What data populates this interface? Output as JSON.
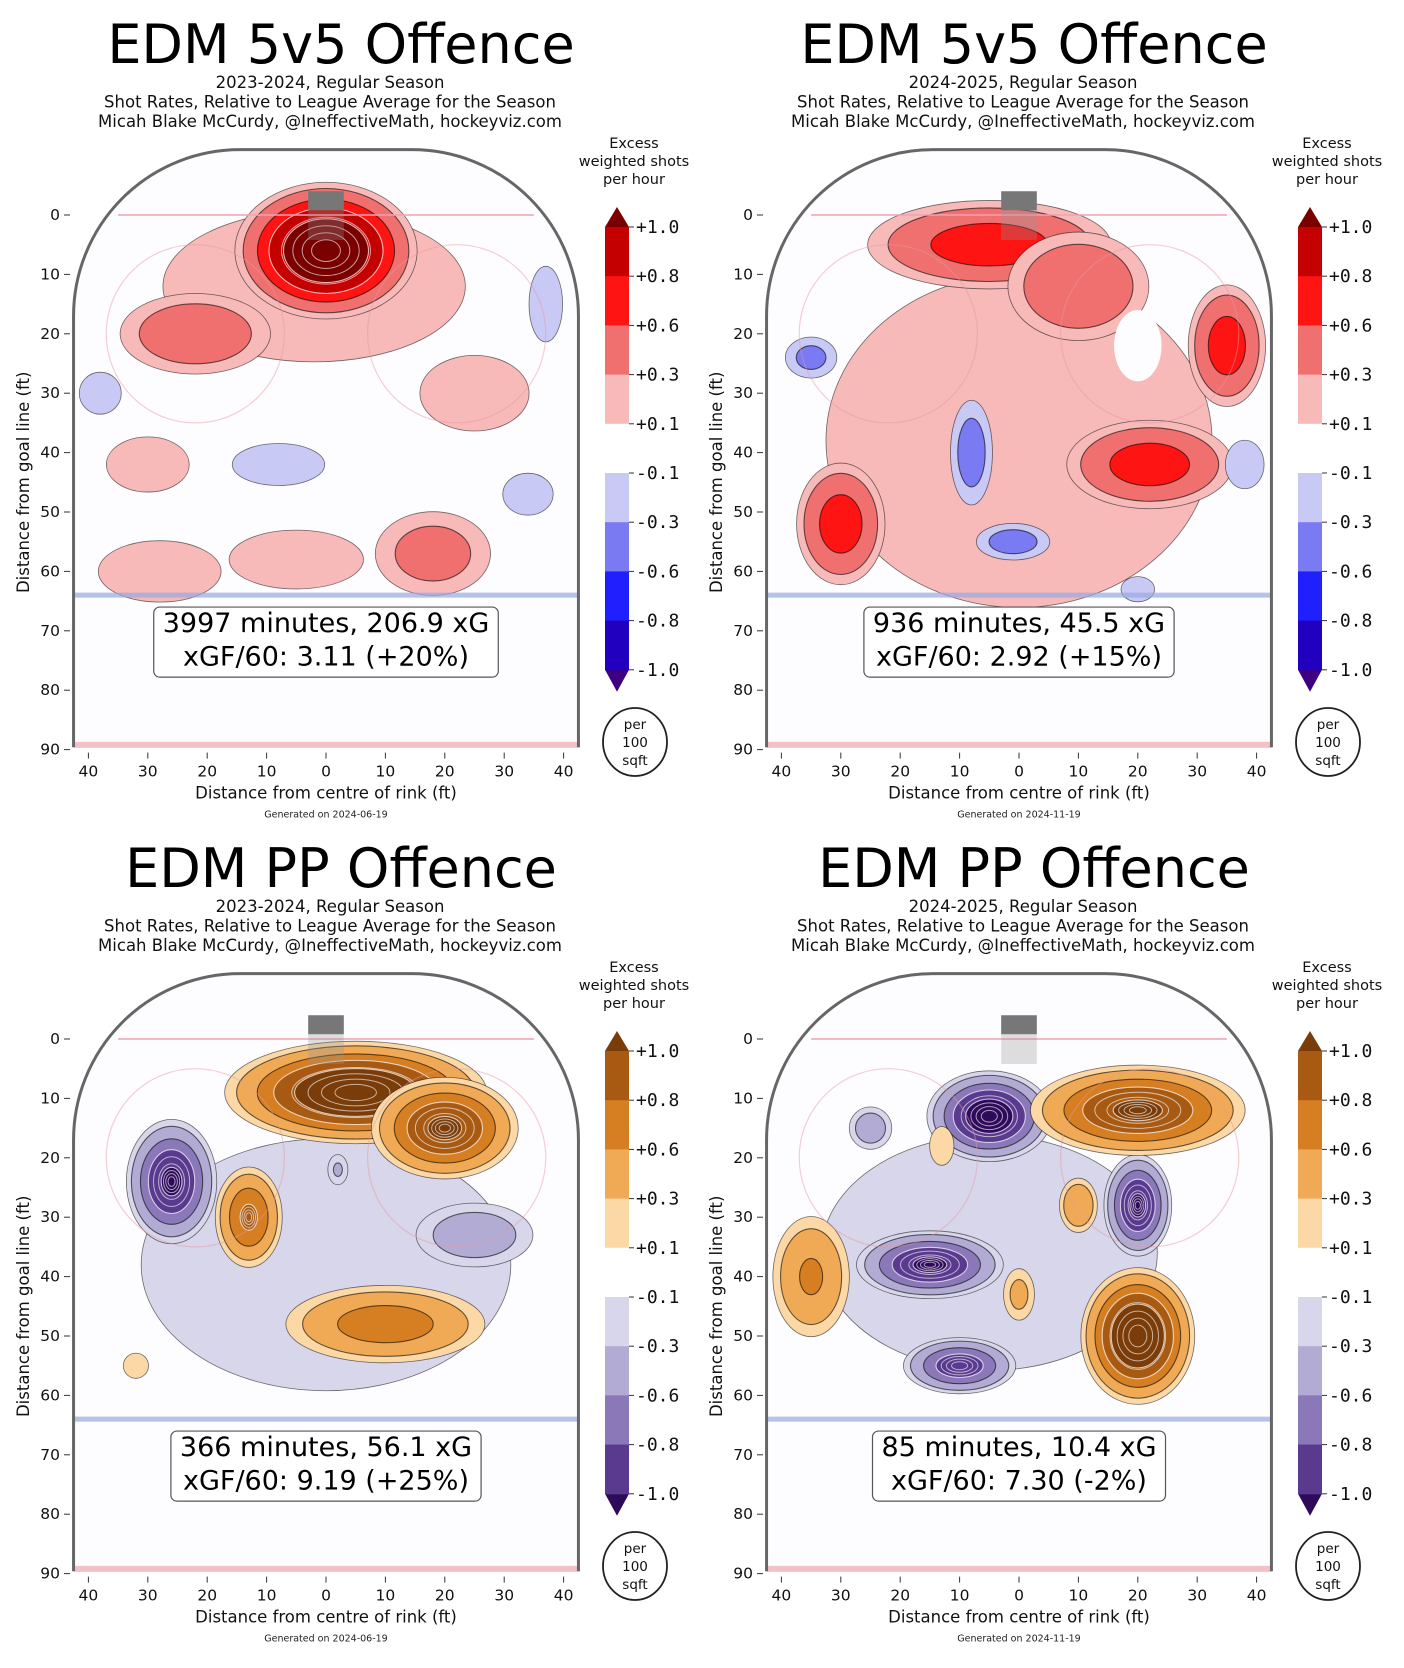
{
  "colorbar_title": [
    "Excess",
    "weighted shots",
    "per hour"
  ],
  "colorbar_unit": [
    "per",
    "100",
    "sqft"
  ],
  "colorbar_ticks": [
    "+1.0",
    "+0.8",
    "+0.6",
    "+0.3",
    "+0.1",
    "-0.1",
    "-0.3",
    "-0.6",
    "-0.8",
    "-1.0"
  ],
  "colorbar_levels": [
    1.0,
    0.8,
    0.6,
    0.3,
    0.1,
    -0.1,
    -0.3,
    -0.6,
    -0.8,
    -1.0
  ],
  "palettes": {
    "red_blue": {
      "pos": [
        "#f8b9b9",
        "#f07070",
        "#ff1414",
        "#c40000",
        "#7a0000"
      ],
      "neg": [
        "#c9c9f5",
        "#7a7af2",
        "#2020ff",
        "#2200c0",
        "#3c0080"
      ]
    },
    "brown_purple": {
      "pos": [
        "#fbd8a6",
        "#f0aa55",
        "#d57e22",
        "#a85a12",
        "#7a3c08"
      ],
      "neg": [
        "#d8d6ea",
        "#b2acd4",
        "#8a78b8",
        "#5a3a8e",
        "#2f0a5a"
      ]
    }
  },
  "chart_data": [
    {
      "type": "heatmap",
      "title": "EDM 5v5 Offence",
      "subtitle": [
        "2023-2024, Regular Season",
        "Shot Rates, Relative to League Average for the Season",
        "Micah Blake McCurdy, @IneffectiveMath, hockeyviz.com"
      ],
      "xlabel": "Distance from centre of rink (ft)",
      "ylabel": "Distance from goal line (ft)",
      "xticks": [
        "40",
        "30",
        "20",
        "10",
        "0",
        "10",
        "20",
        "30",
        "40"
      ],
      "yticks": [
        "0",
        "10",
        "20",
        "30",
        "40",
        "50",
        "60",
        "70",
        "80",
        "90"
      ],
      "xlim": [
        -42,
        42
      ],
      "ylim": [
        0,
        90
      ],
      "palette": "red_blue",
      "stat_lines": [
        "3997 minutes, 206.9 xG",
        "xGF/60: 3.11 (+20%)"
      ],
      "generated": "Generated on 2024-06-19",
      "hotspots": [
        {
          "x": -2,
          "y": 12,
          "rx": 36,
          "ry": 18,
          "v": 0.2
        },
        {
          "x": 25,
          "y": 30,
          "rx": 13,
          "ry": 9,
          "v": 0.2
        },
        {
          "x": -28,
          "y": 60,
          "rx": 14,
          "ry": 7,
          "v": 0.22
        },
        {
          "x": -5,
          "y": 58,
          "rx": 16,
          "ry": 7,
          "v": 0.2
        },
        {
          "x": 18,
          "y": 57,
          "rx": 11,
          "ry": 8,
          "v": 0.45
        },
        {
          "x": -30,
          "y": 42,
          "rx": 9,
          "ry": 6,
          "v": 0.25
        },
        {
          "x": 0,
          "y": 6,
          "rx": 16,
          "ry": 12,
          "v": 1.25
        },
        {
          "x": -22,
          "y": 20,
          "rx": 14,
          "ry": 7.5,
          "v": 0.55
        },
        {
          "x": 37,
          "y": 15,
          "rx": 4,
          "ry": 9,
          "v": -0.2
        },
        {
          "x": -38,
          "y": 30,
          "rx": 5,
          "ry": 5,
          "v": -0.2
        },
        {
          "x": -8,
          "y": 42,
          "rx": 11,
          "ry": 5,
          "v": -0.2
        },
        {
          "x": 34,
          "y": 47,
          "rx": 6,
          "ry": 5,
          "v": -0.2
        }
      ]
    },
    {
      "type": "heatmap",
      "title": "EDM 5v5 Offence",
      "subtitle": [
        "2024-2025, Regular Season",
        "Shot Rates, Relative to League Average for the Season",
        "Micah Blake McCurdy, @IneffectiveMath, hockeyviz.com"
      ],
      "xlabel": "Distance from centre of rink (ft)",
      "ylabel": "Distance from goal line (ft)",
      "xticks": [
        "40",
        "30",
        "20",
        "10",
        "0",
        "10",
        "20",
        "30",
        "40"
      ],
      "yticks": [
        "0",
        "10",
        "20",
        "30",
        "40",
        "50",
        "60",
        "70",
        "80",
        "90"
      ],
      "xlim": [
        -42,
        42
      ],
      "ylim": [
        0,
        90
      ],
      "palette": "red_blue",
      "stat_lines": [
        "936 minutes, 45.5 xG",
        "xGF/60: 2.92 (+15%)"
      ],
      "generated": "Generated on 2024-11-19",
      "hotspots": [
        {
          "x": 0,
          "y": 38,
          "rx": 44,
          "ry": 38,
          "v": 0.22
        },
        {
          "x": -5,
          "y": 5,
          "rx": 22,
          "ry": 8,
          "v": 0.75
        },
        {
          "x": 10,
          "y": 12,
          "rx": 13,
          "ry": 10,
          "v": 0.6
        },
        {
          "x": 35,
          "y": 22,
          "rx": 7,
          "ry": 11,
          "v": 0.75
        },
        {
          "x": 22,
          "y": 42,
          "rx": 15,
          "ry": 8,
          "v": 0.75
        },
        {
          "x": -30,
          "y": 52,
          "rx": 8,
          "ry": 11,
          "v": 0.75
        },
        {
          "x": 20,
          "y": 22,
          "rx": 4,
          "ry": 6,
          "v": -0.05
        },
        {
          "x": -8,
          "y": 40,
          "rx": 4,
          "ry": 10,
          "v": -0.45
        },
        {
          "x": -35,
          "y": 24,
          "rx": 5,
          "ry": 4,
          "v": -0.4
        },
        {
          "x": -1,
          "y": 55,
          "rx": 7,
          "ry": 3.5,
          "v": -0.45
        },
        {
          "x": 38,
          "y": 42,
          "rx": 4,
          "ry": 5,
          "v": -0.3
        },
        {
          "x": 20,
          "y": 63,
          "rx": 4,
          "ry": 3,
          "v": -0.2
        }
      ]
    },
    {
      "type": "heatmap",
      "title": "EDM PP Offence",
      "subtitle": [
        "2023-2024, Regular Season",
        "Shot Rates, Relative to League Average for the Season",
        "Micah Blake McCurdy, @IneffectiveMath, hockeyviz.com"
      ],
      "xlabel": "Distance from centre of rink (ft)",
      "ylabel": "Distance from goal line (ft)",
      "xticks": [
        "40",
        "30",
        "20",
        "10",
        "0",
        "10",
        "20",
        "30",
        "40"
      ],
      "yticks": [
        "0",
        "10",
        "20",
        "30",
        "40",
        "50",
        "60",
        "70",
        "80",
        "90"
      ],
      "xlim": [
        -42,
        42
      ],
      "ylim": [
        0,
        90
      ],
      "palette": "brown_purple",
      "stat_lines": [
        "366 minutes, 56.1 xG",
        "xGF/60: 9.19 (+25%)"
      ],
      "generated": "Generated on 2024-06-19",
      "hotspots": [
        {
          "x": 0,
          "y": 38,
          "rx": 44,
          "ry": 30,
          "v": -0.2
        },
        {
          "x": 5,
          "y": 9,
          "rx": 23,
          "ry": 9,
          "v": 1.25
        },
        {
          "x": 20,
          "y": 15,
          "rx": 13,
          "ry": 9,
          "v": 1.05
        },
        {
          "x": -13,
          "y": 30,
          "rx": 6,
          "ry": 9,
          "v": 0.85
        },
        {
          "x": 10,
          "y": 48,
          "rx": 18,
          "ry": 7,
          "v": 0.75
        },
        {
          "x": -32,
          "y": 55,
          "rx": 3,
          "ry": 3,
          "v": 0.2
        },
        {
          "x": -26,
          "y": 24,
          "rx": 8,
          "ry": 11,
          "v": -1.05
        },
        {
          "x": 25,
          "y": 33,
          "rx": 11,
          "ry": 6,
          "v": -0.5
        },
        {
          "x": 2,
          "y": 22,
          "rx": 2,
          "ry": 3,
          "v": -0.35
        }
      ]
    },
    {
      "type": "heatmap",
      "title": "EDM PP Offence",
      "subtitle": [
        "2024-2025, Regular Season",
        "Shot Rates, Relative to League Average for the Season",
        "Micah Blake McCurdy, @IneffectiveMath, hockeyviz.com"
      ],
      "xlabel": "Distance from centre of rink (ft)",
      "ylabel": "Distance from goal line (ft)",
      "xticks": [
        "40",
        "30",
        "20",
        "10",
        "0",
        "10",
        "20",
        "30",
        "40"
      ],
      "yticks": [
        "0",
        "10",
        "20",
        "30",
        "40",
        "50",
        "60",
        "70",
        "80",
        "90"
      ],
      "xlim": [
        -42,
        42
      ],
      "ylim": [
        0,
        90
      ],
      "palette": "brown_purple",
      "stat_lines": [
        "85 minutes, 10.4 xG",
        "xGF/60: 7.30 (-2%)"
      ],
      "generated": "Generated on 2024-11-19",
      "hotspots": [
        {
          "x": -5,
          "y": 36,
          "rx": 40,
          "ry": 28,
          "v": -0.2
        },
        {
          "x": -5,
          "y": 13,
          "rx": 11,
          "ry": 8,
          "v": -1.15
        },
        {
          "x": -15,
          "y": 38,
          "rx": 13,
          "ry": 6,
          "v": -1.05
        },
        {
          "x": -10,
          "y": 55,
          "rx": 10,
          "ry": 5,
          "v": -0.95
        },
        {
          "x": 20,
          "y": 28,
          "rx": 6,
          "ry": 9,
          "v": -1.05
        },
        {
          "x": -25,
          "y": 15,
          "rx": 4,
          "ry": 4,
          "v": -0.5
        },
        {
          "x": 20,
          "y": 12,
          "rx": 19,
          "ry": 8,
          "v": 1.05
        },
        {
          "x": 20,
          "y": 50,
          "rx": 10,
          "ry": 12,
          "v": 1.25
        },
        {
          "x": -35,
          "y": 40,
          "rx": 7,
          "ry": 11,
          "v": 0.65
        },
        {
          "x": 10,
          "y": 28,
          "rx": 3.5,
          "ry": 5,
          "v": 0.6
        },
        {
          "x": 0,
          "y": 43,
          "rx": 3,
          "ry": 5,
          "v": 0.4
        },
        {
          "x": -13,
          "y": 18,
          "rx": 2.5,
          "ry": 4,
          "v": 0.3
        }
      ]
    }
  ]
}
